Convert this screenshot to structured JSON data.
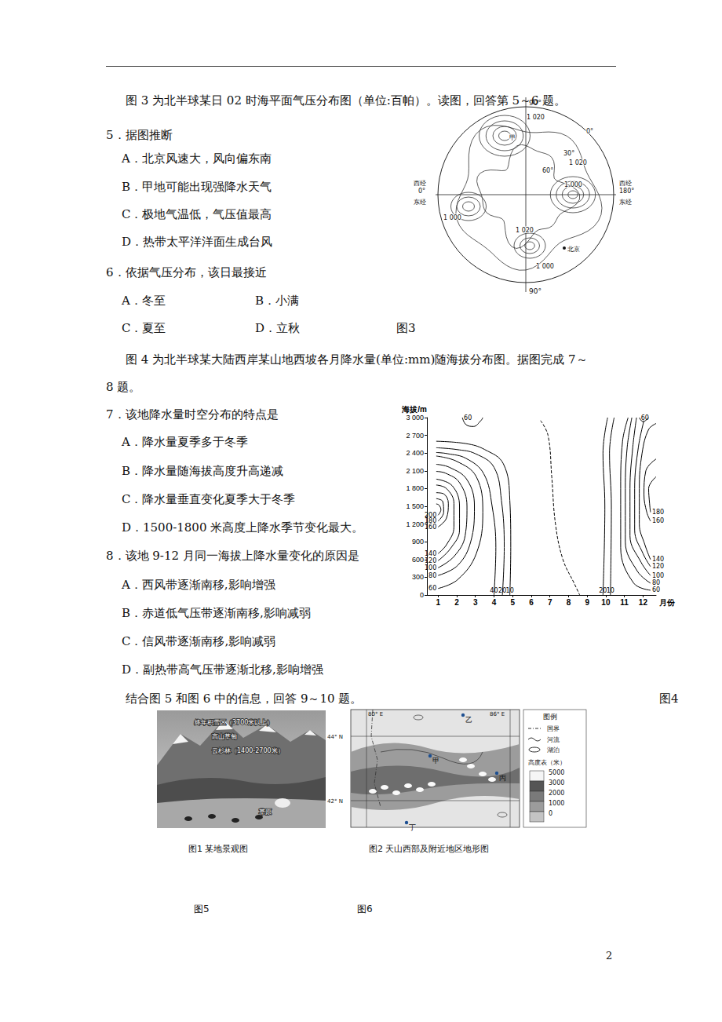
{
  "page_number": "2",
  "q5_6": {
    "intro": "图 3 为北半球某日 02 时海平面气压分布图（单位:百帕）。读图，回答第 5～6 题。",
    "questions": [
      {
        "stem": "5．据图推断",
        "options": [
          "A．北京风速大，风向偏东南",
          "B．甲地可能出现强降水天气",
          "C．极地气温低，气压值最高",
          "D．热带太平洋洋面生成台风"
        ]
      },
      {
        "stem": "6．依据气压分布，该日最接近",
        "options": [
          "A．冬至",
          "B．小满",
          "C．夏至",
          "D．立秋"
        ]
      }
    ],
    "figure_caption": "图3"
  },
  "figure3": {
    "top": "90°",
    "bottom": "90°",
    "left": [
      "西经",
      "0°",
      "东经"
    ],
    "right": [
      "西经",
      "180°",
      "东经"
    ],
    "labels": [
      "0°",
      "30°",
      "60°",
      "1 020",
      "1 020",
      "1 000",
      "1 000",
      "1 000",
      "1 020",
      "甲",
      "北京"
    ]
  },
  "q7_8": {
    "intro": [
      "图 4 为北半球某大陆西岸某山地西坡各月降水量(单位:mm)随海拔分布图。据图完成 7～",
      "8 题。"
    ],
    "questions": [
      {
        "stem": "7．该地降水量时空分布的特点是",
        "options": [
          "A．降水量夏季多于冬季",
          "B．降水量随海拔高度升高递减",
          "C．降水量垂直变化夏季大于冬季",
          "D．1500-1800 米高度上降水季节变化最大。"
        ]
      },
      {
        "stem": "8．该地 9-12 月同一海拔上降水量变化的原因是",
        "options": [
          "A．西风带逐渐南移,影响增强",
          "B．赤道低气压带逐渐南移,影响减弱",
          "C．信风带逐渐南移,影响减弱",
          "D．副热带高气压带逐渐北移,影响增强"
        ]
      }
    ],
    "figure_caption": "图4"
  },
  "chart_data": {
    "type": "contour_line",
    "xlabel": "月份",
    "ylabel": "海拔/m",
    "color": "#000000",
    "grid": false,
    "xlim": [
      0.4,
      12.7
    ],
    "xticks": [
      1,
      2,
      3,
      4,
      5,
      6,
      7,
      8,
      9,
      10,
      11,
      12
    ],
    "ylim": [
      0,
      3000
    ],
    "yticks": [
      0,
      300,
      600,
      900,
      {
        "value": 1200,
        "label": "1 200"
      },
      {
        "value": 1500,
        "label": "1 500"
      },
      {
        "value": 1800,
        "label": "1 800"
      },
      {
        "value": 2100,
        "label": "2 100"
      },
      {
        "value": 2400,
        "label": "2 400"
      },
      {
        "value": 2700,
        "label": "2 700"
      },
      {
        "value": 3000,
        "label": "3 000"
      }
    ],
    "series": [
      {
        "value": 200,
        "points": [
          [
            1,
            1350
          ],
          [
            1.15,
            1440
          ],
          [
            1.05,
            1520
          ],
          [
            0.9,
            1540
          ]
        ]
      },
      {
        "value": 180,
        "points": [
          [
            1,
            1250
          ],
          [
            1.3,
            1400
          ],
          [
            1.25,
            1580
          ],
          [
            0.9,
            1630
          ]
        ]
      },
      {
        "value": 160,
        "points": [
          [
            1,
            1150
          ],
          [
            1.45,
            1300
          ],
          [
            1.55,
            1550
          ],
          [
            1.3,
            1710
          ],
          [
            0.9,
            1730
          ]
        ]
      },
      {
        "value": 140,
        "points": [
          [
            1,
            700
          ],
          [
            1.45,
            850
          ],
          [
            1.85,
            1150
          ],
          [
            1.85,
            1550
          ],
          [
            1.45,
            1800
          ],
          [
            0.9,
            1860
          ]
        ]
      },
      {
        "value": 120,
        "points": [
          [
            1,
            580
          ],
          [
            1.65,
            780
          ],
          [
            2.15,
            1100
          ],
          [
            2.15,
            1500
          ],
          [
            1.75,
            1850
          ],
          [
            0.9,
            1960
          ]
        ]
      },
      {
        "value": 100,
        "points": [
          [
            1,
            460
          ],
          [
            1.85,
            650
          ],
          [
            2.45,
            1000
          ],
          [
            2.55,
            1500
          ],
          [
            2.15,
            1900
          ],
          [
            1.4,
            2060
          ],
          [
            0.9,
            2090
          ]
        ]
      },
      {
        "value": 80,
        "points": [
          [
            1,
            330
          ],
          [
            2.05,
            500
          ],
          [
            2.75,
            900
          ],
          [
            2.95,
            1500
          ],
          [
            2.55,
            1950
          ],
          [
            1.6,
            2160
          ],
          [
            0.9,
            2210
          ]
        ]
      },
      {
        "value": 60,
        "points": [
          [
            1,
            110
          ],
          [
            2.05,
            260
          ],
          [
            3.05,
            700
          ],
          [
            3.4,
            1400
          ],
          [
            3.05,
            2000
          ],
          [
            2,
            2260
          ],
          [
            0.9,
            2350
          ]
        ]
      },
      {
        "value": 40,
        "points": [
          [
            4,
            0
          ],
          [
            4.1,
            800
          ],
          [
            3.9,
            1500
          ],
          [
            3.45,
            2050
          ],
          [
            2.5,
            2310
          ],
          [
            1.5,
            2390
          ],
          [
            0.9,
            2410
          ]
        ]
      },
      {
        "value": 20,
        "points": [
          [
            4.45,
            0
          ],
          [
            4.55,
            800
          ],
          [
            4.4,
            1600
          ],
          [
            4,
            2160
          ],
          [
            3,
            2390
          ],
          [
            2,
            2460
          ],
          [
            0.9,
            2490
          ]
        ]
      },
      {
        "value": 10,
        "points": [
          [
            4.85,
            0
          ],
          [
            4.9,
            800
          ],
          [
            4.85,
            1600
          ],
          [
            4.5,
            2220
          ],
          [
            3.5,
            2460
          ],
          [
            2.5,
            2560
          ],
          [
            0.9,
            2600
          ]
        ]
      },
      {
        "value": 60,
        "points": [
          [
            2.3,
            3000
          ],
          [
            2.5,
            2880
          ],
          [
            2.9,
            2850
          ],
          [
            3.3,
            2950
          ],
          [
            3.4,
            3000
          ]
        ]
      },
      {
        "value": null,
        "line_style": "dashed",
        "points": [
          [
            6.5,
            2950
          ],
          [
            6.9,
            2700
          ],
          [
            7.1,
            2000
          ],
          [
            7.3,
            1200
          ],
          [
            7.7,
            600
          ],
          [
            8.3,
            200
          ],
          [
            8.6,
            0
          ]
        ]
      },
      {
        "value": 20,
        "points": [
          [
            9.85,
            0
          ],
          [
            9.95,
            1500
          ],
          [
            9.85,
            2400
          ],
          [
            10.1,
            3000
          ]
        ]
      },
      {
        "value": 10,
        "points": [
          [
            10.25,
            0
          ],
          [
            10.3,
            1500
          ],
          [
            10.2,
            2400
          ],
          [
            10.45,
            3000
          ]
        ]
      },
      {
        "value": 60,
        "points": [
          [
            12.4,
            80
          ],
          [
            11.5,
            200
          ],
          [
            10.8,
            800
          ],
          [
            10.8,
            1800
          ],
          [
            10.9,
            2600
          ],
          [
            11.2,
            3000
          ]
        ]
      },
      {
        "value": 80,
        "points": [
          [
            12.4,
            200
          ],
          [
            11.7,
            400
          ],
          [
            11.05,
            900
          ],
          [
            11.05,
            1800
          ],
          [
            11.15,
            2500
          ],
          [
            11.4,
            3000
          ]
        ]
      },
      {
        "value": 100,
        "points": [
          [
            12.4,
            330
          ],
          [
            11.9,
            550
          ],
          [
            11.3,
            1000
          ],
          [
            11.3,
            1800
          ],
          [
            11.45,
            2500
          ],
          [
            11.65,
            3000
          ]
        ]
      },
      {
        "value": 120,
        "points": [
          [
            12.4,
            480
          ],
          [
            12,
            700
          ],
          [
            11.55,
            1100
          ],
          [
            11.55,
            1800
          ],
          [
            11.75,
            2500
          ],
          [
            12.05,
            2950
          ]
        ]
      },
      {
        "value": 140,
        "points": [
          [
            12.4,
            600
          ],
          [
            12.1,
            850
          ],
          [
            11.8,
            1200
          ],
          [
            11.8,
            1800
          ],
          [
            11.95,
            2400
          ],
          [
            12.3,
            2800
          ],
          [
            12.7,
            2900
          ]
        ]
      },
      {
        "value": 160,
        "points": [
          [
            12.4,
            1250
          ],
          [
            12.2,
            1400
          ],
          [
            12.05,
            1700
          ],
          [
            12.15,
            2100
          ],
          [
            12.7,
            2300
          ]
        ]
      },
      {
        "value": 180,
        "points": [
          [
            12.4,
            1400
          ],
          [
            12.35,
            1550
          ],
          [
            12.3,
            1800
          ],
          [
            12.7,
            2000
          ]
        ]
      },
      {
        "value": 60,
        "points": [
          [
            11.8,
            3000
          ],
          [
            12,
            2930
          ],
          [
            12.3,
            3000
          ]
        ]
      }
    ]
  },
  "q9_10": {
    "intro": "结合图 5 和图 6 中的信息，回答 9～10 题。",
    "figure5": {
      "title": "图1 某地景观图",
      "labels": [
        "终年积雪区（3700米以上）",
        "高山草甸",
        "云杉林（1400-2700米）",
        "草原"
      ],
      "caption": "图5"
    },
    "figure6": {
      "title": "图2 天山西部及附近地区地形图",
      "lon_labels": [
        "80° E",
        "86° E"
      ],
      "lat_labels": [
        "44° N",
        "42° N"
      ],
      "places": [
        "乙",
        "甲",
        "丙",
        "丁"
      ],
      "legend": {
        "title": "图例",
        "items": [
          "国界",
          "河流",
          "湖泊"
        ],
        "elevation_title": "高度表（米）",
        "elevation_levels": [
          5000,
          3000,
          2000,
          1000,
          0
        ]
      },
      "caption": "图6"
    }
  }
}
